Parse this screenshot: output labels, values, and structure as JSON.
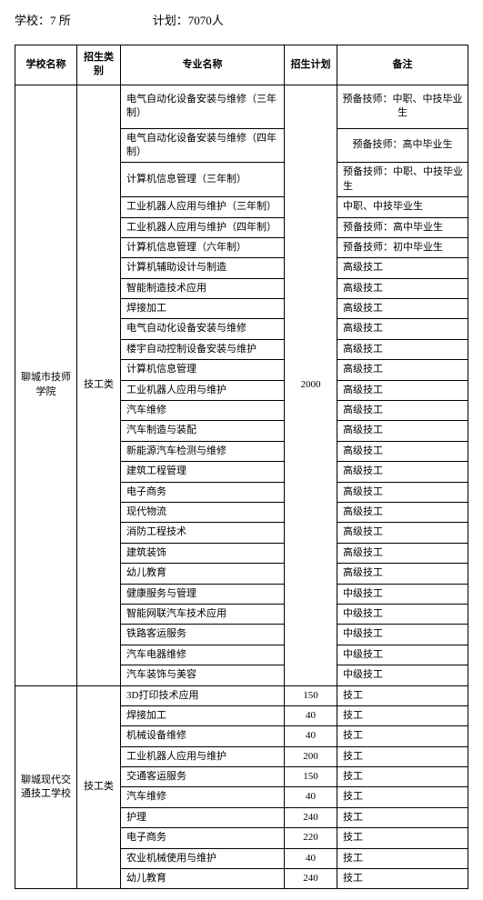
{
  "header": {
    "schools": "学校：7 所",
    "plan": "计划：7070人"
  },
  "columns": [
    "学校名称",
    "招生类别",
    "专业名称",
    "招生计划",
    "备注"
  ],
  "schools": [
    {
      "name": "聊城市技师学院",
      "category": "技工类",
      "plan": "2000",
      "majors": [
        {
          "major": "电气自动化设备安装与维修（三年制）",
          "note": "预备技师：中职、中技毕业生",
          "noteRowspan": 1
        },
        {
          "major": "电气自动化设备安装与维修（四年制）",
          "note": "预备技师：高中毕业生",
          "noteRowspan": 1
        },
        {
          "major": "计算机信息管理（三年制）",
          "note": "预备技师：中职、中技毕业生"
        },
        {
          "major": "工业机器人应用与维护（三年制）",
          "note": "中职、中技毕业生"
        },
        {
          "major": "工业机器人应用与维护（四年制）",
          "note": "预备技师：高中毕业生"
        },
        {
          "major": "计算机信息管理（六年制）",
          "note": "预备技师：初中毕业生"
        },
        {
          "major": "计算机辅助设计与制造",
          "note": "高级技工"
        },
        {
          "major": "智能制造技术应用",
          "note": "高级技工"
        },
        {
          "major": "焊接加工",
          "note": "高级技工"
        },
        {
          "major": "电气自动化设备安装与维修",
          "note": "高级技工"
        },
        {
          "major": "楼宇自动控制设备安装与维护",
          "note": "高级技工"
        },
        {
          "major": "计算机信息管理",
          "note": "高级技工"
        },
        {
          "major": "工业机器人应用与维护",
          "note": "高级技工"
        },
        {
          "major": "汽车维修",
          "note": "高级技工"
        },
        {
          "major": "汽车制造与装配",
          "note": "高级技工"
        },
        {
          "major": "新能源汽车检测与维修",
          "note": "高级技工"
        },
        {
          "major": "建筑工程管理",
          "note": "高级技工"
        },
        {
          "major": "电子商务",
          "note": "高级技工"
        },
        {
          "major": "现代物流",
          "note": "高级技工"
        },
        {
          "major": "消防工程技术",
          "note": "高级技工"
        },
        {
          "major": "建筑装饰",
          "note": "高级技工"
        },
        {
          "major": "幼儿教育",
          "note": "高级技工"
        },
        {
          "major": "健康服务与管理",
          "note": "中级技工"
        },
        {
          "major": "智能网联汽车技术应用",
          "note": "中级技工"
        },
        {
          "major": "铁路客运服务",
          "note": "中级技工"
        },
        {
          "major": "汽车电器维修",
          "note": "中级技工"
        },
        {
          "major": "汽车装饰与美容",
          "note": "中级技工"
        }
      ]
    },
    {
      "name": "聊城现代交通技工学校",
      "category": "技工类",
      "majors": [
        {
          "major": "3D打印技术应用",
          "plan": "150",
          "note": "技工"
        },
        {
          "major": "焊接加工",
          "plan": "40",
          "note": "技工"
        },
        {
          "major": "机械设备维修",
          "plan": "40",
          "note": "技工"
        },
        {
          "major": "工业机器人应用与维护",
          "plan": "200",
          "note": "技工"
        },
        {
          "major": "交通客运服务",
          "plan": "150",
          "note": "技工"
        },
        {
          "major": "汽车维修",
          "plan": "40",
          "note": "技工"
        },
        {
          "major": "护理",
          "plan": "240",
          "note": "技工"
        },
        {
          "major": "电子商务",
          "plan": "220",
          "note": "技工"
        },
        {
          "major": "农业机械使用与维护",
          "plan": "40",
          "note": "技工"
        },
        {
          "major": "幼儿教育",
          "plan": "240",
          "note": "技工"
        }
      ]
    }
  ]
}
